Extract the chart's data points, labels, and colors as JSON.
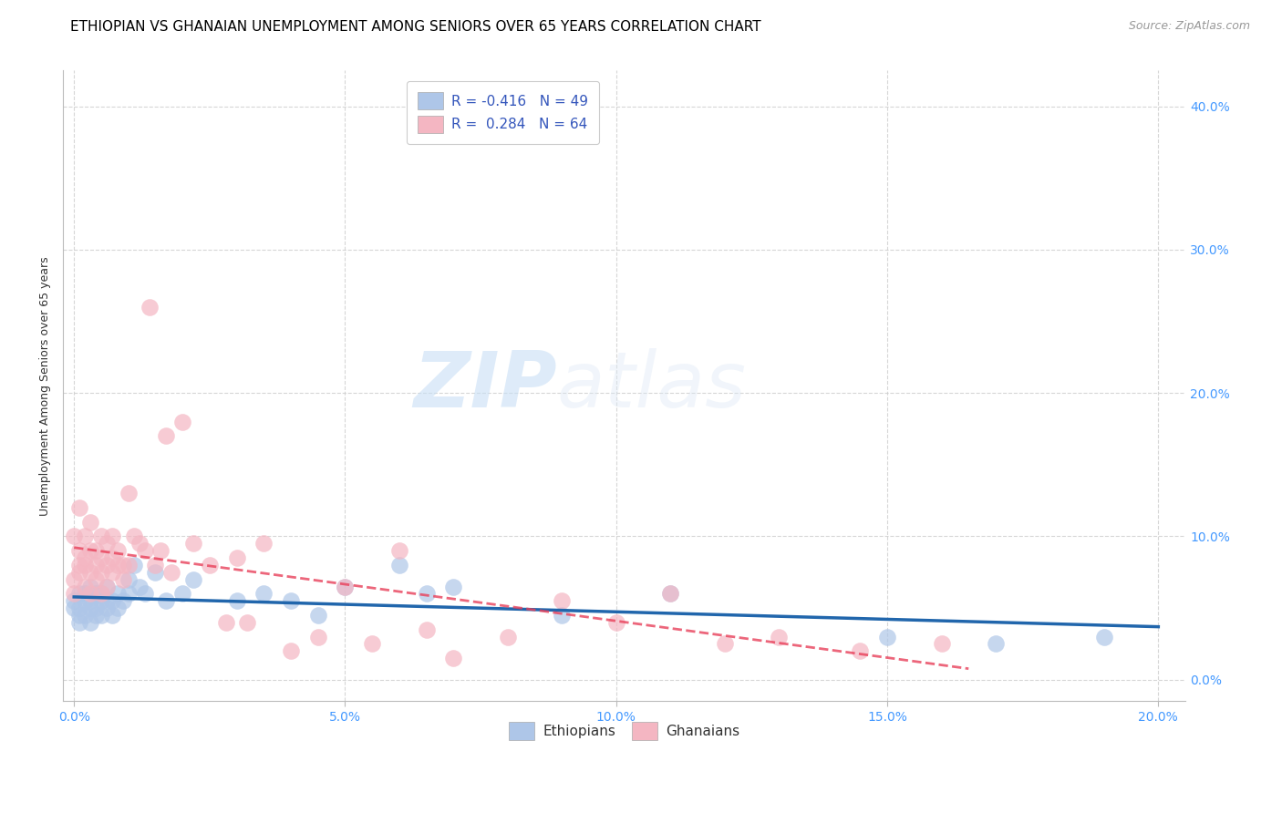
{
  "title": "ETHIOPIAN VS GHANAIAN UNEMPLOYMENT AMONG SENIORS OVER 65 YEARS CORRELATION CHART",
  "source": "Source: ZipAtlas.com",
  "ylabel": "Unemployment Among Seniors over 65 years",
  "xlim": [
    -0.002,
    0.205
  ],
  "ylim": [
    -0.015,
    0.425
  ],
  "ethiopian_R": -0.416,
  "ethiopian_N": 49,
  "ghanaian_R": 0.284,
  "ghanaian_N": 64,
  "ethiopian_color": "#aec6e8",
  "ethiopian_line_color": "#2166ac",
  "ghanaian_color": "#f4b6c2",
  "ghanaian_line_color": "#e8405a",
  "watermark_zip": "ZIP",
  "watermark_atlas": "atlas",
  "title_fontsize": 11,
  "axis_label_fontsize": 9,
  "tick_fontsize": 10,
  "source_fontsize": 9,
  "ethiopian_x": [
    0.0,
    0.0,
    0.001,
    0.001,
    0.001,
    0.001,
    0.002,
    0.002,
    0.002,
    0.003,
    0.003,
    0.003,
    0.003,
    0.004,
    0.004,
    0.004,
    0.005,
    0.005,
    0.005,
    0.006,
    0.006,
    0.006,
    0.007,
    0.007,
    0.008,
    0.008,
    0.009,
    0.01,
    0.01,
    0.011,
    0.012,
    0.013,
    0.015,
    0.017,
    0.02,
    0.022,
    0.03,
    0.035,
    0.04,
    0.045,
    0.05,
    0.06,
    0.065,
    0.07,
    0.09,
    0.11,
    0.15,
    0.17,
    0.19
  ],
  "ethiopian_y": [
    0.05,
    0.055,
    0.045,
    0.06,
    0.05,
    0.04,
    0.055,
    0.045,
    0.06,
    0.04,
    0.055,
    0.065,
    0.05,
    0.045,
    0.06,
    0.05,
    0.055,
    0.045,
    0.06,
    0.055,
    0.05,
    0.065,
    0.055,
    0.045,
    0.05,
    0.06,
    0.055,
    0.07,
    0.06,
    0.08,
    0.065,
    0.06,
    0.075,
    0.055,
    0.06,
    0.07,
    0.055,
    0.06,
    0.055,
    0.045,
    0.065,
    0.08,
    0.06,
    0.065,
    0.045,
    0.06,
    0.03,
    0.025,
    0.03
  ],
  "ghanaian_x": [
    0.0,
    0.0,
    0.0,
    0.001,
    0.001,
    0.001,
    0.001,
    0.002,
    0.002,
    0.002,
    0.002,
    0.003,
    0.003,
    0.003,
    0.003,
    0.004,
    0.004,
    0.004,
    0.005,
    0.005,
    0.005,
    0.005,
    0.006,
    0.006,
    0.006,
    0.007,
    0.007,
    0.007,
    0.008,
    0.008,
    0.009,
    0.009,
    0.01,
    0.01,
    0.011,
    0.012,
    0.013,
    0.014,
    0.015,
    0.016,
    0.017,
    0.018,
    0.02,
    0.022,
    0.025,
    0.028,
    0.03,
    0.032,
    0.035,
    0.04,
    0.045,
    0.05,
    0.055,
    0.06,
    0.065,
    0.07,
    0.08,
    0.09,
    0.1,
    0.11,
    0.12,
    0.13,
    0.145,
    0.16
  ],
  "ghanaian_y": [
    0.06,
    0.07,
    0.1,
    0.075,
    0.08,
    0.09,
    0.12,
    0.065,
    0.08,
    0.085,
    0.1,
    0.06,
    0.075,
    0.09,
    0.11,
    0.07,
    0.08,
    0.09,
    0.06,
    0.075,
    0.085,
    0.1,
    0.065,
    0.08,
    0.095,
    0.075,
    0.085,
    0.1,
    0.08,
    0.09,
    0.07,
    0.08,
    0.08,
    0.13,
    0.1,
    0.095,
    0.09,
    0.26,
    0.08,
    0.09,
    0.17,
    0.075,
    0.18,
    0.095,
    0.08,
    0.04,
    0.085,
    0.04,
    0.095,
    0.02,
    0.03,
    0.065,
    0.025,
    0.09,
    0.035,
    0.015,
    0.03,
    0.055,
    0.04,
    0.06,
    0.025,
    0.03,
    0.02,
    0.025
  ]
}
